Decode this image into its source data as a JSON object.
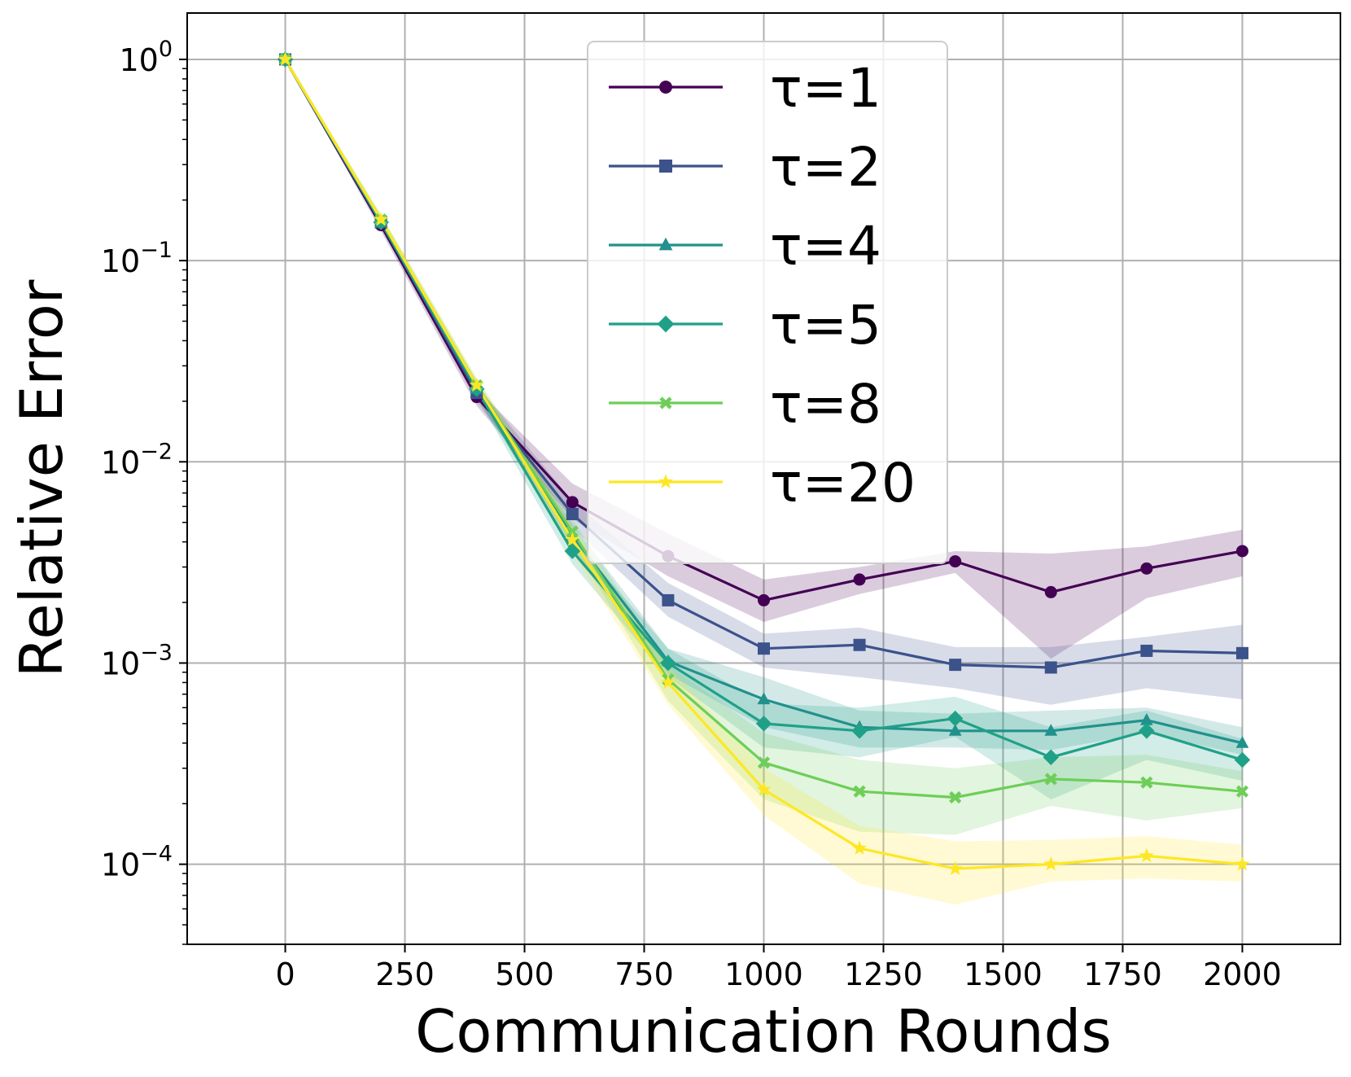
{
  "chart_data": {
    "type": "line",
    "xlabel": "Communication Rounds",
    "ylabel": "Relative Error",
    "yscale": "log",
    "xlim": [
      -205,
      2205
    ],
    "ylim": [
      4e-05,
      1.7
    ],
    "grid": true,
    "legend_position": "top-center",
    "x_ticks": [
      {
        "value": 0,
        "label": "0"
      },
      {
        "value": 250,
        "label": "250"
      },
      {
        "value": 500,
        "label": "500"
      },
      {
        "value": 750,
        "label": "750"
      },
      {
        "value": 1000,
        "label": "1000"
      },
      {
        "value": 1250,
        "label": "1250"
      },
      {
        "value": 1500,
        "label": "1500"
      },
      {
        "value": 1750,
        "label": "1750"
      },
      {
        "value": 2000,
        "label": "2000"
      }
    ],
    "y_ticks": [
      {
        "value": 1,
        "base": "10",
        "exp": "0"
      },
      {
        "value": 0.1,
        "base": "10",
        "exp": "−1"
      },
      {
        "value": 0.01,
        "base": "10",
        "exp": "−2"
      },
      {
        "value": 0.001,
        "base": "10",
        "exp": "−3"
      },
      {
        "value": 0.0001,
        "base": "10",
        "exp": "−4"
      }
    ],
    "x": [
      0,
      200,
      400,
      600,
      800,
      1000,
      1200,
      1400,
      1600,
      1800,
      2000
    ],
    "series": [
      {
        "name": "τ=1",
        "color": "#440154",
        "marker": "circle",
        "values": [
          1.0,
          0.15,
          0.021,
          0.0063,
          0.0034,
          0.00205,
          0.0026,
          0.0032,
          0.00225,
          0.00295,
          0.0036
        ],
        "lower": [
          1.0,
          0.14,
          0.019,
          0.0052,
          0.0027,
          0.0016,
          0.0022,
          0.0028,
          0.00105,
          0.0021,
          0.0027
        ],
        "upper": [
          1.0,
          0.16,
          0.023,
          0.0078,
          0.0044,
          0.0026,
          0.003,
          0.0036,
          0.0035,
          0.0038,
          0.0046
        ]
      },
      {
        "name": "τ=2",
        "color": "#3b528b",
        "marker": "square",
        "values": [
          1.0,
          0.155,
          0.022,
          0.0055,
          0.00205,
          0.00118,
          0.00123,
          0.00098,
          0.00095,
          0.00115,
          0.00112
        ],
        "lower": [
          1.0,
          0.145,
          0.02,
          0.0047,
          0.0017,
          0.00095,
          0.00085,
          0.00075,
          0.00062,
          0.00075,
          0.00066
        ],
        "upper": [
          1.0,
          0.165,
          0.024,
          0.0064,
          0.0025,
          0.0014,
          0.0015,
          0.0012,
          0.0012,
          0.00135,
          0.00155
        ]
      },
      {
        "name": "τ=4",
        "color": "#21918c",
        "marker": "triangle",
        "values": [
          1.0,
          0.155,
          0.023,
          0.0043,
          0.00102,
          0.00066,
          0.00048,
          0.00046,
          0.00046,
          0.00052,
          0.0004
        ],
        "lower": [
          1.0,
          0.145,
          0.021,
          0.0037,
          0.00088,
          0.00048,
          0.00038,
          0.00038,
          0.00037,
          0.00045,
          0.00035
        ],
        "upper": [
          1.0,
          0.165,
          0.025,
          0.0049,
          0.00118,
          0.00085,
          0.00058,
          0.00056,
          0.00058,
          0.0006,
          0.00048
        ]
      },
      {
        "name": "τ=5",
        "color": "#1fa187",
        "marker": "diamond",
        "values": [
          1.0,
          0.155,
          0.023,
          0.0036,
          0.001,
          0.0005,
          0.00046,
          0.00053,
          0.00034,
          0.00046,
          0.00033
        ],
        "lower": [
          1.0,
          0.145,
          0.021,
          0.0031,
          0.00085,
          0.00038,
          0.00034,
          0.00043,
          0.00021,
          0.00033,
          0.00026
        ],
        "upper": [
          1.0,
          0.165,
          0.025,
          0.0042,
          0.00118,
          0.00063,
          0.0006,
          0.00068,
          0.00048,
          0.00058,
          0.00042
        ]
      },
      {
        "name": "τ=8",
        "color": "#6ece58",
        "marker": "x",
        "values": [
          1.0,
          0.16,
          0.024,
          0.0045,
          0.00083,
          0.00032,
          0.00023,
          0.000215,
          0.000265,
          0.000255,
          0.00023
        ],
        "lower": [
          1.0,
          0.15,
          0.022,
          0.0039,
          0.00065,
          0.00021,
          0.000145,
          0.00014,
          0.000195,
          0.000165,
          0.00019
        ],
        "upper": [
          1.0,
          0.17,
          0.026,
          0.0052,
          0.00098,
          0.00045,
          0.00033,
          0.0003,
          0.00034,
          0.00035,
          0.00029
        ]
      },
      {
        "name": "τ=20",
        "color": "#fde725",
        "marker": "star",
        "values": [
          1.0,
          0.16,
          0.024,
          0.0041,
          0.0008,
          0.000235,
          0.00012,
          9.5e-05,
          0.0001,
          0.00011,
          0.0001
        ],
        "lower": [
          1.0,
          0.15,
          0.022,
          0.0035,
          0.00062,
          0.000175,
          8e-05,
          6.3e-05,
          8.2e-05,
          8.5e-05,
          8.2e-05
        ],
        "upper": [
          1.0,
          0.17,
          0.026,
          0.0047,
          0.00096,
          0.0003,
          0.000155,
          0.00013,
          0.000132,
          0.000138,
          0.000125
        ]
      }
    ]
  }
}
